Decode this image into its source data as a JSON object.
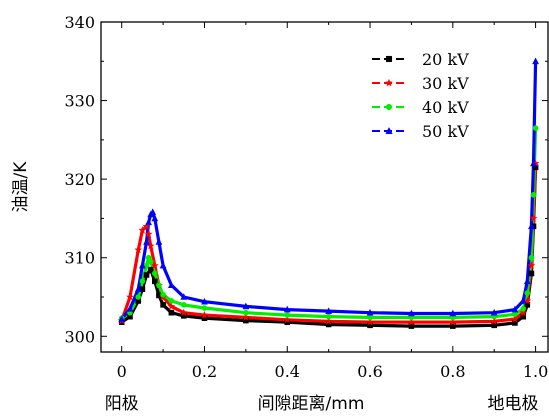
{
  "chart_data": {
    "type": "line",
    "xlabel": "间隙距离/mm",
    "ylabel": "油温/K",
    "x_label_left": "阳极",
    "x_label_right": "地电极",
    "xlim": [
      -0.05,
      1.03
    ],
    "ylim": [
      298,
      340
    ],
    "xticks": [
      0,
      0.2,
      0.4,
      0.6,
      0.8,
      1.0
    ],
    "xtick_labels": [
      "0",
      "0.2",
      "0.4",
      "0.6",
      "0.8",
      "1.0"
    ],
    "yticks": [
      300,
      310,
      320,
      330,
      340
    ],
    "ytick_labels": [
      "300",
      "310",
      "320",
      "330",
      "340"
    ],
    "grid": false,
    "legend_position": "top-right",
    "series": [
      {
        "name": "20 kV",
        "color": "#000000",
        "marker": "square",
        "x": [
          0.0,
          0.02,
          0.04,
          0.05,
          0.06,
          0.07,
          0.08,
          0.09,
          0.1,
          0.12,
          0.15,
          0.2,
          0.3,
          0.4,
          0.5,
          0.6,
          0.7,
          0.8,
          0.9,
          0.95,
          0.97,
          0.98,
          0.99,
          0.995,
          1.0
        ],
        "y": [
          301.8,
          302.5,
          304.5,
          306.0,
          307.8,
          308.5,
          307.0,
          305.2,
          304.0,
          303.0,
          302.6,
          302.3,
          302.0,
          301.8,
          301.5,
          301.4,
          301.3,
          301.3,
          301.4,
          301.7,
          302.5,
          304.0,
          308.0,
          314.0,
          321.5
        ]
      },
      {
        "name": "30 kV",
        "color": "#ff0000",
        "marker": "star",
        "x": [
          0.0,
          0.02,
          0.04,
          0.05,
          0.06,
          0.065,
          0.07,
          0.08,
          0.09,
          0.1,
          0.12,
          0.15,
          0.2,
          0.3,
          0.4,
          0.5,
          0.6,
          0.7,
          0.8,
          0.9,
          0.95,
          0.97,
          0.98,
          0.99,
          0.995,
          1.0
        ],
        "y": [
          302.0,
          305.0,
          311.0,
          313.5,
          314.0,
          313.0,
          311.5,
          309.0,
          306.5,
          305.0,
          303.8,
          303.0,
          302.7,
          302.4,
          302.1,
          301.9,
          301.8,
          301.8,
          301.8,
          301.9,
          302.2,
          303.0,
          304.5,
          309.0,
          315.0,
          322.0
        ]
      },
      {
        "name": "40 kV",
        "color": "#00ee00",
        "marker": "circle",
        "x": [
          0.0,
          0.02,
          0.04,
          0.05,
          0.06,
          0.065,
          0.07,
          0.08,
          0.09,
          0.1,
          0.12,
          0.15,
          0.2,
          0.3,
          0.4,
          0.5,
          0.6,
          0.7,
          0.8,
          0.9,
          0.95,
          0.97,
          0.98,
          0.99,
          0.995,
          1.0
        ],
        "y": [
          302.3,
          303.0,
          305.0,
          307.0,
          309.0,
          310.0,
          309.5,
          308.0,
          306.5,
          305.3,
          304.5,
          304.0,
          303.6,
          303.0,
          302.7,
          302.5,
          302.4,
          302.4,
          302.4,
          302.5,
          302.8,
          303.5,
          305.5,
          310.0,
          318.0,
          326.5
        ]
      },
      {
        "name": "50 kV",
        "color": "#0000ff",
        "marker": "triangle",
        "x": [
          0.0,
          0.02,
          0.04,
          0.05,
          0.06,
          0.065,
          0.07,
          0.075,
          0.08,
          0.09,
          0.1,
          0.12,
          0.15,
          0.2,
          0.3,
          0.4,
          0.5,
          0.6,
          0.7,
          0.8,
          0.9,
          0.95,
          0.97,
          0.98,
          0.99,
          0.995,
          1.0
        ],
        "y": [
          302.2,
          303.5,
          306.0,
          309.0,
          312.0,
          314.5,
          315.5,
          315.8,
          315.0,
          312.0,
          309.0,
          306.5,
          305.0,
          304.4,
          303.8,
          303.4,
          303.2,
          303.0,
          302.9,
          302.9,
          303.0,
          303.4,
          304.5,
          307.0,
          314.0,
          322.0,
          335.0
        ]
      }
    ]
  }
}
